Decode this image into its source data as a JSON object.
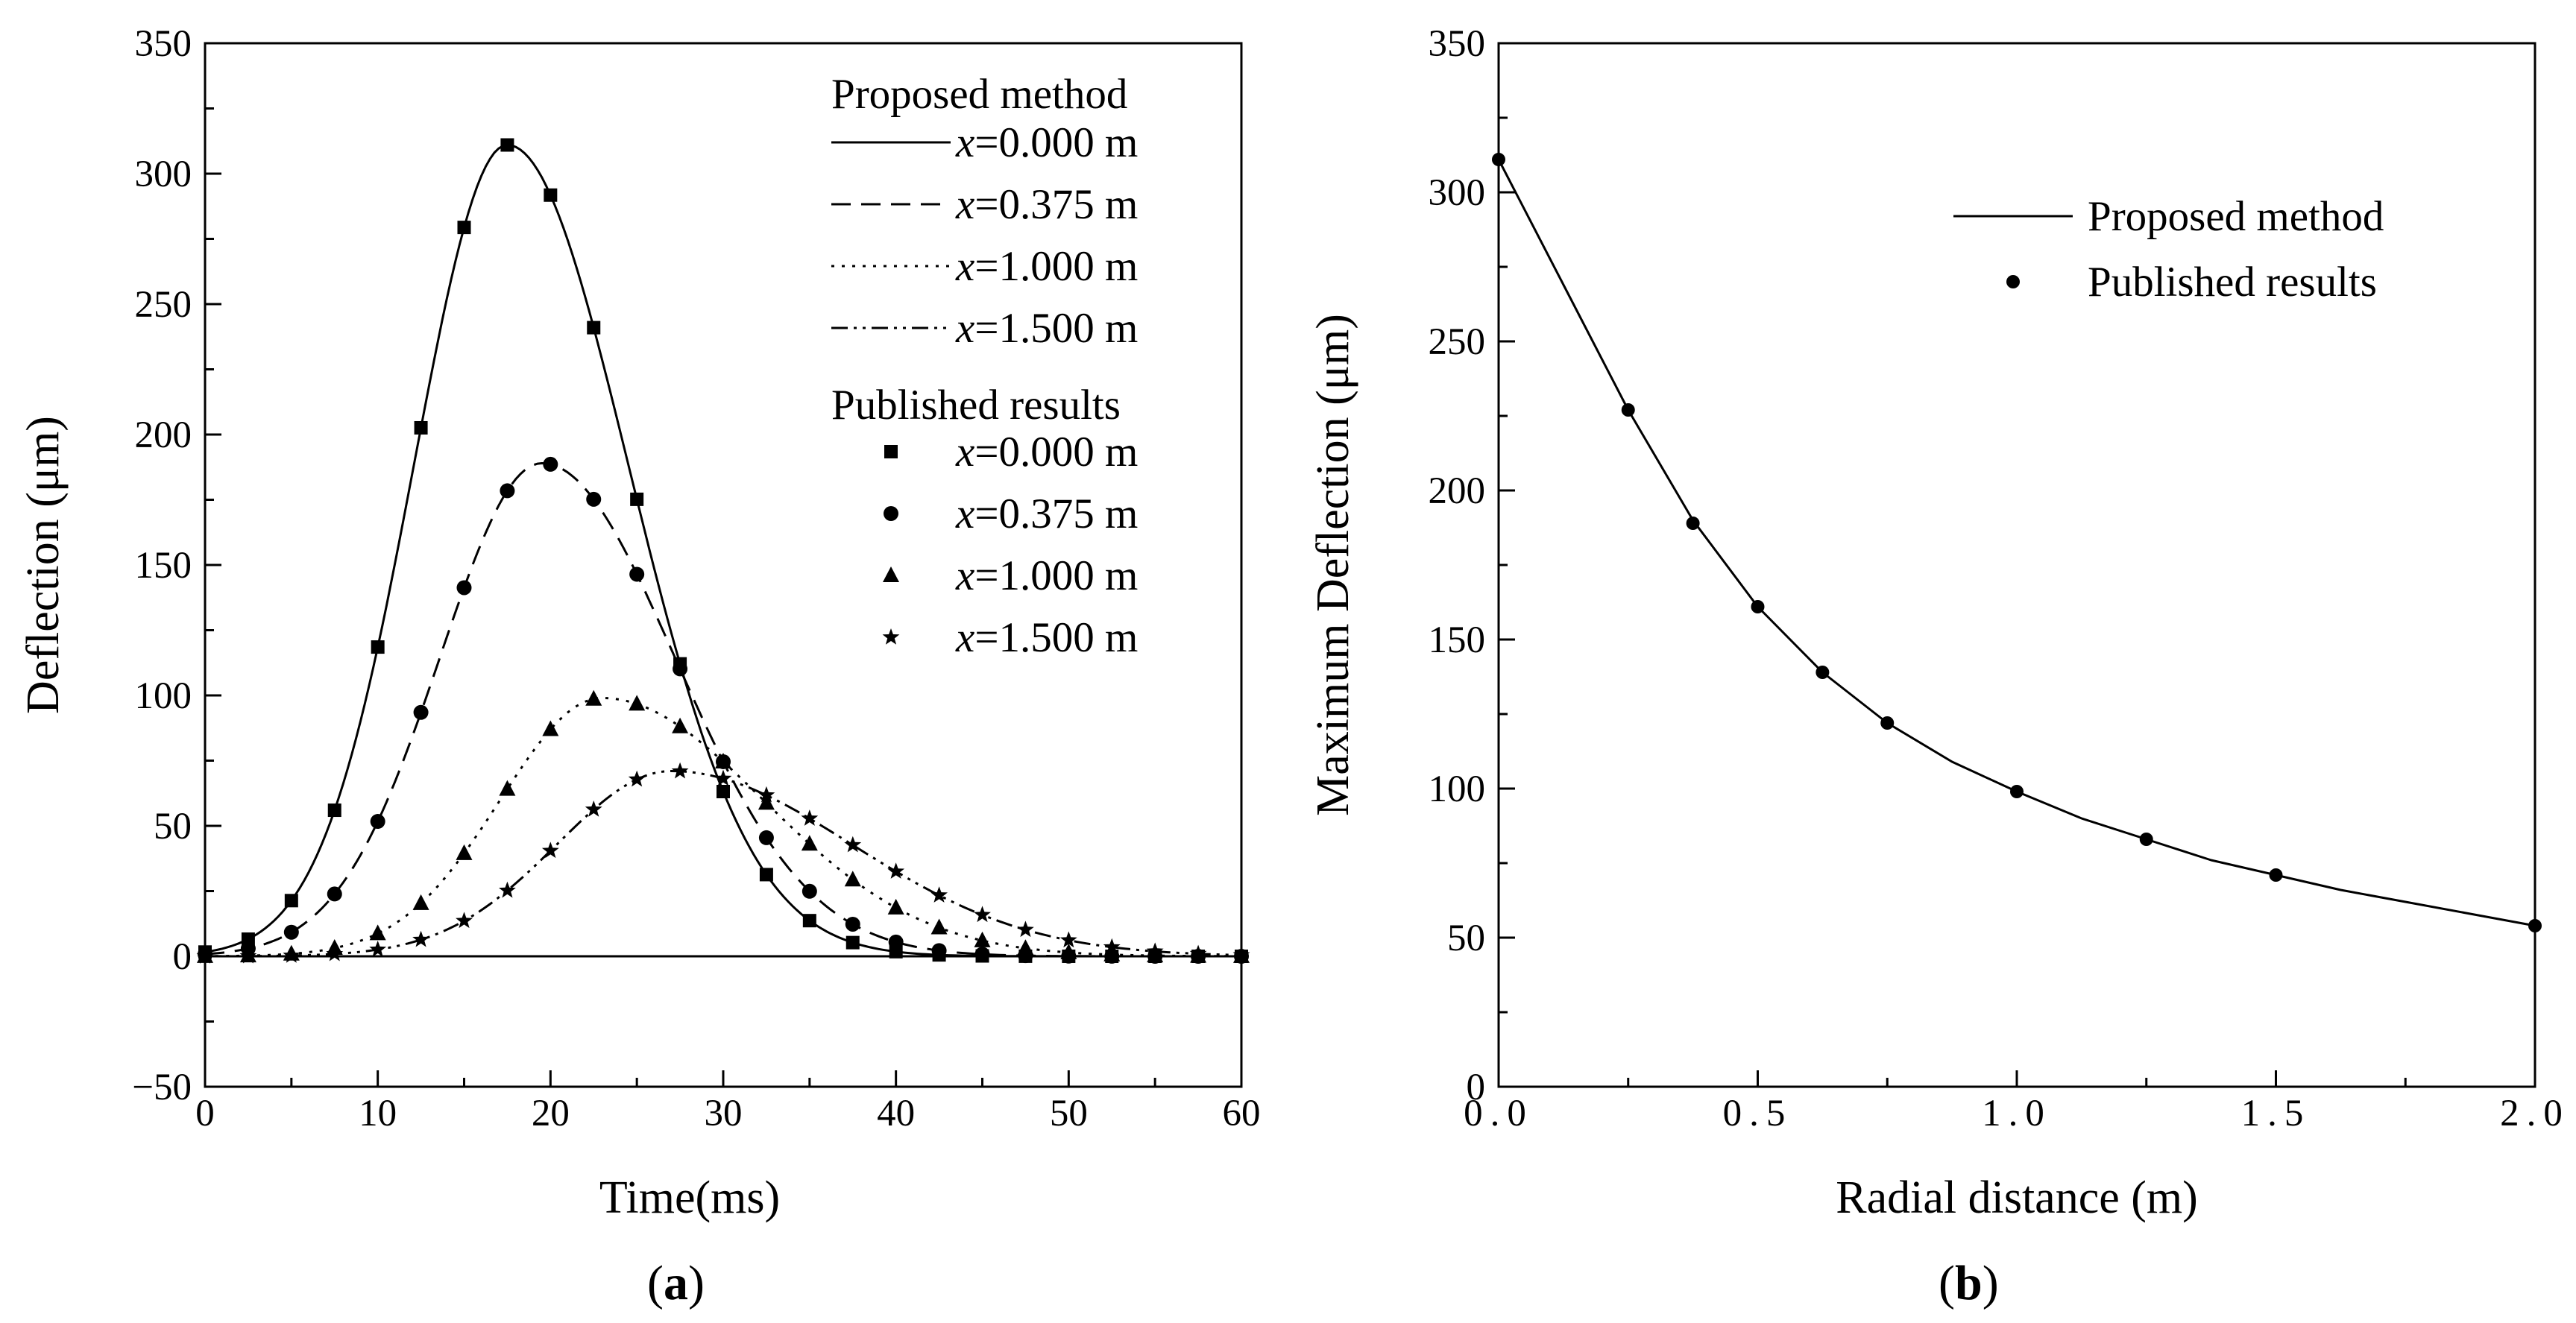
{
  "chart_data": [
    {
      "type": "line",
      "panel_label_open": "(",
      "panel_label_letter": "a",
      "panel_label_close": ")",
      "xlabel": "Time(ms)",
      "ylabel": "Deflection (μm)",
      "xlim": [
        0,
        60
      ],
      "ylim": [
        -50,
        350
      ],
      "xticks": [
        0,
        10,
        20,
        30,
        40,
        50,
        60
      ],
      "yticks": [
        -50,
        0,
        50,
        100,
        150,
        200,
        250,
        300,
        350
      ],
      "x_minor_step": 5,
      "y_minor_step": 25,
      "legend_heading_method": "Proposed method",
      "legend_heading_published": "Published results",
      "legend_prefix": "x",
      "series": [
        {
          "name": "=0.000 m",
          "peak": 311,
          "mu": 17.5,
          "sigma_left": 5.4,
          "sigma_right": 7.0,
          "dash": "solid",
          "marker": "square"
        },
        {
          "name": "=0.375 m",
          "peak": 189,
          "mu": 19.5,
          "sigma_left": 5.9,
          "sigma_right": 7.7,
          "dash": "dashed",
          "marker": "circle"
        },
        {
          "name": "=1.000 m",
          "peak": 99,
          "mu": 23.0,
          "sigma_left": 5.9,
          "sigma_right": 9.3,
          "dash": "dotted",
          "marker": "triangle"
        },
        {
          "name": "=1.500 m",
          "peak": 71,
          "mu": 27.0,
          "sigma_left": 6.6,
          "sigma_right": 10.4,
          "dash": "dashdotdot",
          "marker": "star"
        }
      ],
      "published_x": [
        0,
        2.5,
        5,
        7.5,
        10,
        12.5,
        15,
        17.5,
        20,
        22.5,
        25,
        27.5,
        30,
        32.5,
        35,
        37.5,
        40,
        42.5,
        45,
        47.5,
        50,
        52.5,
        55,
        57.5,
        60
      ]
    },
    {
      "type": "line",
      "panel_label_open": "(",
      "panel_label_letter": "b",
      "panel_label_close": ")",
      "xlabel": "Radial distance (m)",
      "ylabel": "Maximum Deflection (μm)",
      "xlim": [
        0,
        2
      ],
      "ylim": [
        0,
        350
      ],
      "xticks": [
        "0.0",
        "0.5",
        "1.0",
        "1.5",
        "2.0"
      ],
      "xtick_values": [
        0,
        0.5,
        1.0,
        1.5,
        2.0
      ],
      "yticks": [
        0,
        50,
        100,
        150,
        200,
        250,
        300,
        350
      ],
      "x_minor_step": 0.25,
      "y_minor_step": 25,
      "legend": [
        "Proposed method",
        "Published results"
      ],
      "line_x": [
        0,
        0.125,
        0.25,
        0.375,
        0.5,
        0.625,
        0.75,
        0.875,
        1.0,
        1.125,
        1.25,
        1.375,
        1.5,
        1.625,
        1.75,
        1.875,
        2.0
      ],
      "line_y": [
        311,
        269,
        227,
        190,
        161,
        139,
        122,
        109,
        99,
        90,
        83,
        76,
        71,
        66,
        62,
        58,
        54
      ],
      "points_x": [
        0,
        0.25,
        0.375,
        0.5,
        0.625,
        0.75,
        1.0,
        1.25,
        1.5,
        2.0
      ],
      "points_y": [
        311,
        227,
        189,
        161,
        139,
        122,
        99,
        83,
        71,
        54
      ]
    }
  ]
}
